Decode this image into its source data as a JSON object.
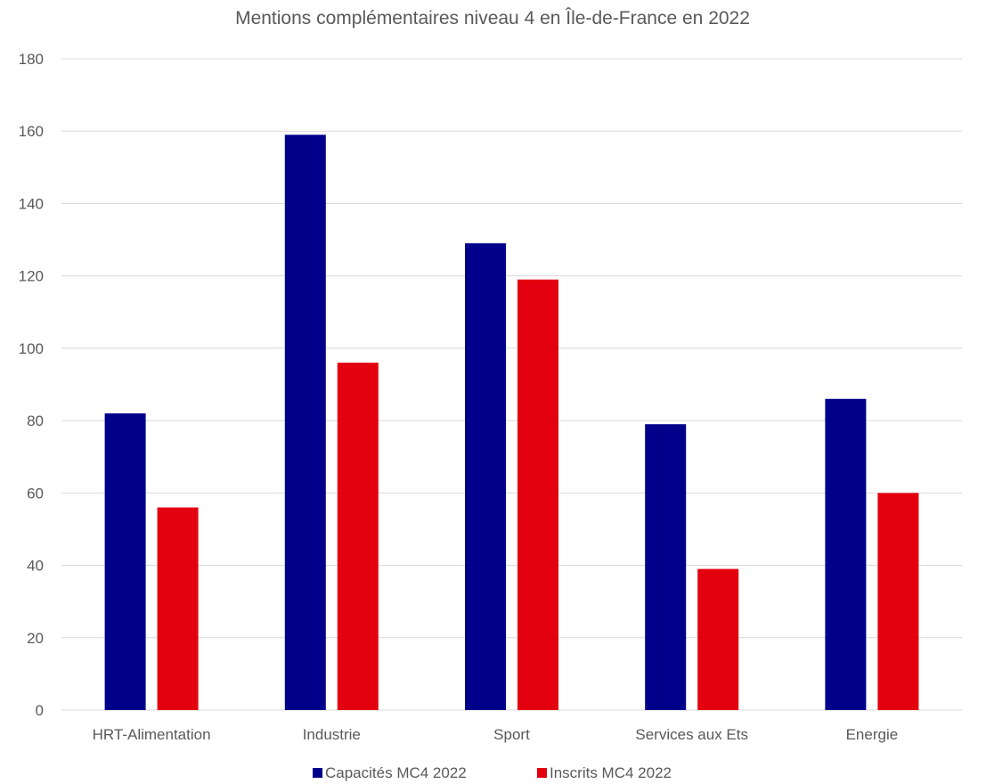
{
  "chart_data": {
    "type": "bar",
    "title": "Mentions complémentaires niveau 4 en Île-de-France en 2022",
    "xlabel": "",
    "ylabel": "",
    "categories": [
      "HRT-Alimentation",
      "Industrie",
      "Sport",
      "Services aux Ets",
      "Energie"
    ],
    "series": [
      {
        "name": "Capacités MC4 2022",
        "color": "#00008b",
        "values": [
          82,
          159,
          129,
          79,
          86
        ]
      },
      {
        "name": "Inscrits MC4 2022",
        "color": "#e3000f",
        "values": [
          56,
          96,
          119,
          39,
          60
        ]
      }
    ],
    "ylim": [
      0,
      180
    ],
    "yticks": [
      "0",
      "20",
      "40",
      "60",
      "80",
      "100",
      "120",
      "140",
      "160",
      "180"
    ],
    "grid": true,
    "legend": "bottom-center"
  }
}
